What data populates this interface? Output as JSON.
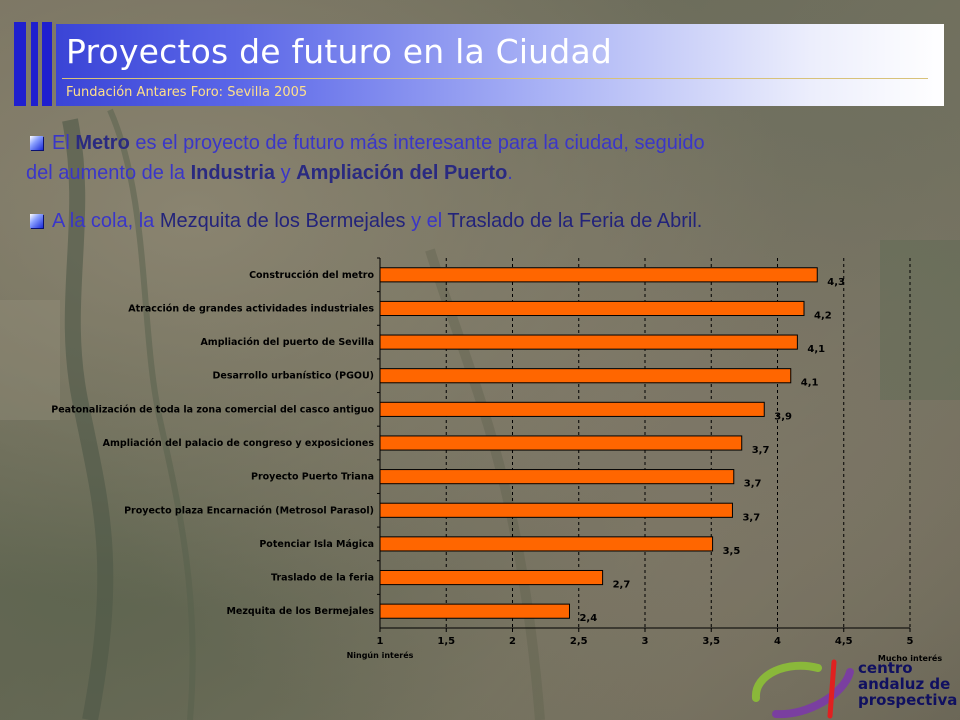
{
  "header": {
    "title": "Proyectos de futuro en la Ciudad",
    "subtitle": "Fundación Antares Foro: Sevilla 2005"
  },
  "bullets": [
    {
      "p1": "El ",
      "b1": "Metro",
      "p2": " es el proyecto de futuro más interesante para la ciudad, seguido",
      "p3": "del aumento de la ",
      "b2": "Industria",
      "p4": " y ",
      "b3": "Ampliación del Puerto",
      "p5": "."
    },
    {
      "p1": "A la cola, la ",
      "d1": "Mezquita de los Bermejales",
      "p2": " y el ",
      "d2": "Traslado de la Feria de Abril."
    }
  ],
  "chart_data": {
    "type": "bar",
    "orientation": "horizontal",
    "categories": [
      "Construcción del metro",
      "Atracción de grandes actividades industriales",
      "Ampliación del puerto de Sevilla",
      "Desarrollo urbanístico (PGOU)",
      "Peatonalización de toda la zona comercial del casco antiguo",
      "Ampliación del palacio de congreso y exposiciones",
      "Proyecto Puerto Triana",
      "Proyecto plaza Encarnación (Metrosol Parasol)",
      "Potenciar Isla Mágica",
      "Traslado de la feria",
      "Mezquita de los Bermejales"
    ],
    "values": [
      4.3,
      4.2,
      4.15,
      4.1,
      3.9,
      3.73,
      3.67,
      3.66,
      3.51,
      2.68,
      2.43
    ],
    "data_labels": [
      "4,3",
      "4,2",
      "4,1",
      "4,1",
      "3,9",
      "3,7",
      "3,7",
      "3,7",
      "3,5",
      "2,7",
      "2,4"
    ],
    "xlim": [
      1,
      5
    ],
    "x_ticks": [
      1,
      1.5,
      2,
      2.5,
      3,
      3.5,
      4,
      4.5,
      5
    ],
    "x_tick_labels": [
      "1",
      "1,5",
      "2",
      "2,5",
      "3",
      "3,5",
      "4",
      "4,5",
      "5"
    ],
    "x_left_label": "Ningún interés",
    "x_right_label": "Mucho interés",
    "grid": "vertical dashed",
    "bar_color": "#ff6600"
  },
  "logo": {
    "line1": "centro",
    "line2": "andaluz de",
    "line3": "prospectiva"
  }
}
